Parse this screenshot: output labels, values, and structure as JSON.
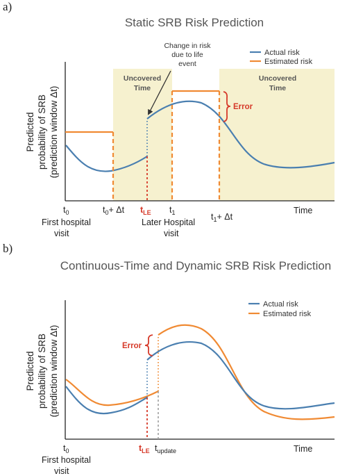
{
  "colors": {
    "actual": "#4a7fb0",
    "estimated": "#f08a33",
    "error": "#d63a2a",
    "uncovered_fill": "#f6f1cf",
    "axis": "#222222"
  },
  "panel_a": {
    "label": "a)",
    "title": "Static SRB Risk Prediction",
    "legend": {
      "actual": "Actual risk",
      "estimated": "Estimated risk"
    },
    "y_label_line1": "Predicted",
    "y_label_line2": "probability of SRB",
    "y_label_line3": "(prediction window Δt)",
    "x_label": "Time",
    "uncovered_1": {
      "line1": "Uncovered",
      "line2": "Time"
    },
    "uncovered_2": {
      "line1": "Uncovered",
      "line2": "Time"
    },
    "annotation": {
      "line1": "Change in risk",
      "line2": "due to life",
      "line3": "event"
    },
    "error_label": "Error",
    "ticks": {
      "t0": "t",
      "t0_sub": "0",
      "t0_caption1": "First hospital",
      "t0_caption2": "visit",
      "t0_dt": "t",
      "t0_dt_sub": "0",
      "t0_dt_suffix": "+ Δt",
      "tle": "t",
      "tle_sub": "LE",
      "t1": "t",
      "t1_sub": "1",
      "t1_caption1": "Later Hospital",
      "t1_caption2": "visit",
      "t1_dt": "t",
      "t1_dt_sub": "1",
      "t1_dt_suffix": "+ Δt"
    }
  },
  "panel_b": {
    "label": "b)",
    "title": "Continuous-Time and Dynamic SRB Risk Prediction",
    "legend": {
      "actual": "Actual risk",
      "estimated": "Estimated risk"
    },
    "y_label_line1": "Predicted",
    "y_label_line2": "probability of SRB",
    "y_label_line3": "(prediction window Δt)",
    "x_label": "Time",
    "error_label": "Error",
    "ticks": {
      "t0": "t",
      "t0_sub": "0",
      "t0_caption1": "First hospital",
      "t0_caption2": "visit",
      "tle": "t",
      "tle_sub": "LE",
      "tupdate": "t",
      "tupdate_sub": "update"
    }
  }
}
